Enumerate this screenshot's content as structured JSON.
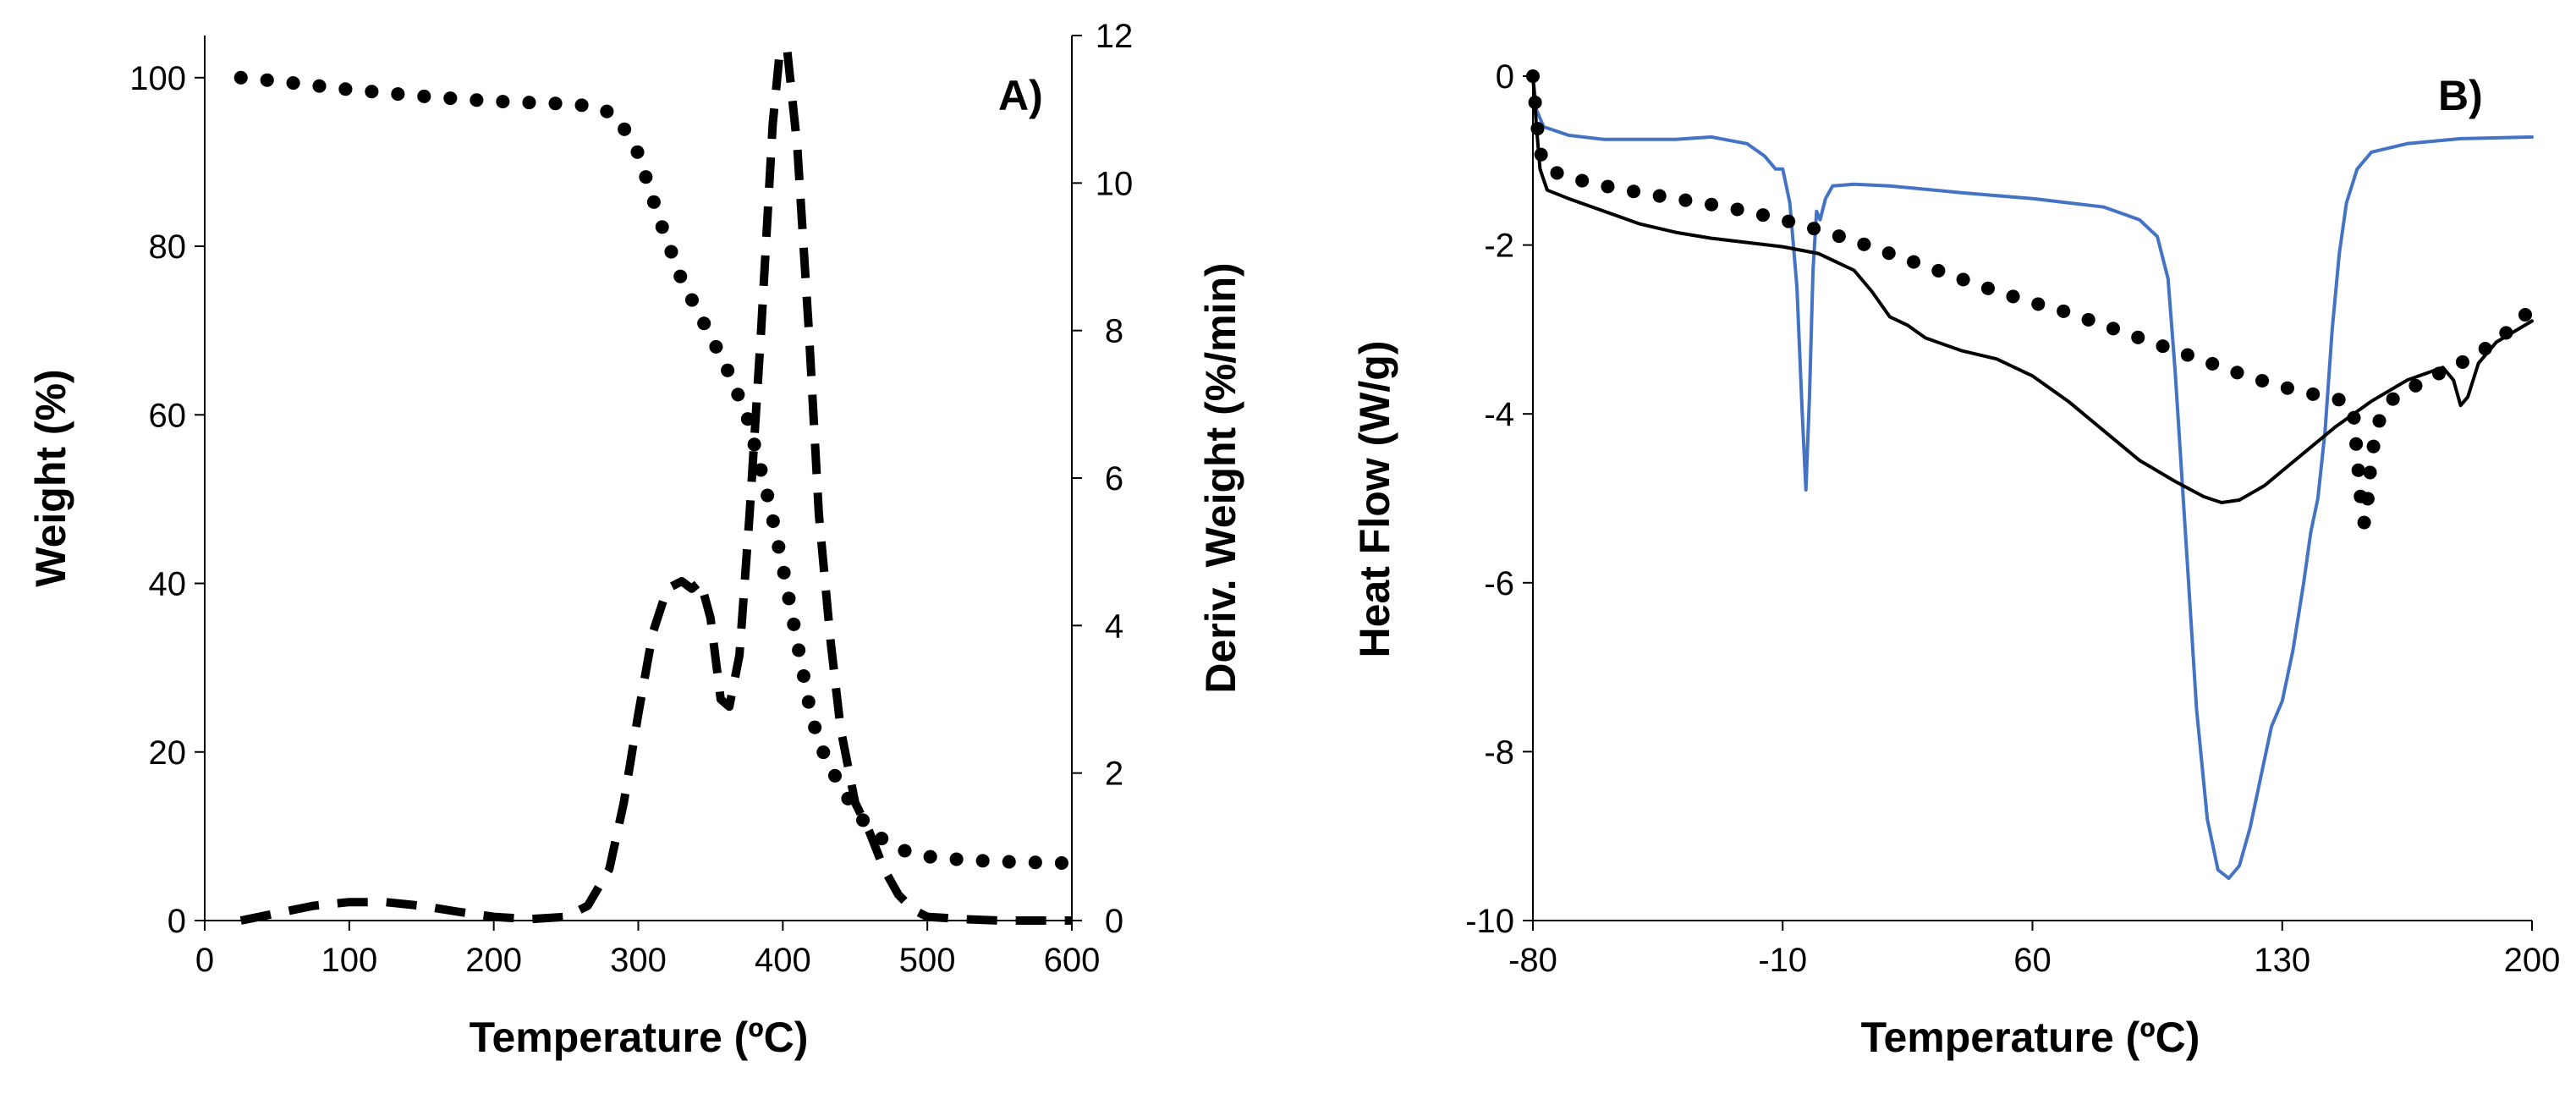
{
  "chart_data": [
    {
      "type": "line",
      "title": "",
      "panel_label": "A)",
      "xlabel": "Temperature (ºC)",
      "ylabel": "Weight (%)",
      "y2label": "Deriv. Weight (%/min)",
      "xlim": [
        0,
        600
      ],
      "ylim": [
        0,
        105
      ],
      "y2lim": [
        0,
        12
      ],
      "x_ticks": [
        "0",
        "100",
        "200",
        "300",
        "400",
        "500",
        "600"
      ],
      "y_ticks": [
        "0",
        "20",
        "40",
        "60",
        "80",
        "100"
      ],
      "y2_ticks": [
        "0",
        "2",
        "4",
        "6",
        "8",
        "10",
        "12"
      ],
      "grid": false,
      "series": [
        {
          "name": "Weight",
          "axis": "left",
          "style": "dotted",
          "color": "#000000",
          "points": [
            [
              25,
              100
            ],
            [
              50,
              99.6
            ],
            [
              100,
              98.6
            ],
            [
              150,
              97.8
            ],
            [
              200,
              97.2
            ],
            [
              250,
              96.9
            ],
            [
              270,
              96.6
            ],
            [
              285,
              95.5
            ],
            [
              300,
              91
            ],
            [
              315,
              83
            ],
            [
              330,
              76
            ],
            [
              345,
              71
            ],
            [
              360,
              66
            ],
            [
              375,
              60
            ],
            [
              390,
              50
            ],
            [
              400,
              42
            ],
            [
              410,
              33
            ],
            [
              420,
              24
            ],
            [
              430,
              19
            ],
            [
              440,
              16
            ],
            [
              450,
              13
            ],
            [
              460,
              11
            ],
            [
              470,
              9.5
            ],
            [
              480,
              8.5
            ],
            [
              490,
              8
            ],
            [
              500,
              7.6
            ],
            [
              525,
              7.2
            ],
            [
              550,
              7
            ],
            [
              600,
              6.8
            ]
          ]
        },
        {
          "name": "Deriv. Weight",
          "axis": "right",
          "style": "dashed",
          "color": "#000000",
          "points": [
            [
              25,
              0
            ],
            [
              50,
              0.1
            ],
            [
              75,
              0.2
            ],
            [
              100,
              0.25
            ],
            [
              125,
              0.25
            ],
            [
              150,
              0.2
            ],
            [
              175,
              0.12
            ],
            [
              200,
              0.05
            ],
            [
              225,
              0.02
            ],
            [
              250,
              0.05
            ],
            [
              265,
              0.2
            ],
            [
              280,
              0.7
            ],
            [
              290,
              1.6
            ],
            [
              300,
              2.8
            ],
            [
              310,
              3.9
            ],
            [
              320,
              4.5
            ],
            [
              330,
              4.6
            ],
            [
              337,
              4.5
            ],
            [
              343,
              4.6
            ],
            [
              350,
              4.1
            ],
            [
              357,
              3.0
            ],
            [
              363,
              2.9
            ],
            [
              370,
              3.6
            ],
            [
              377,
              5.5
            ],
            [
              385,
              8.0
            ],
            [
              393,
              10.8
            ],
            [
              398,
              11.8
            ],
            [
              403,
              11.8
            ],
            [
              410,
              10.5
            ],
            [
              418,
              8.0
            ],
            [
              425,
              5.5
            ],
            [
              433,
              3.8
            ],
            [
              440,
              2.6
            ],
            [
              450,
              1.6
            ],
            [
              460,
              1.2
            ],
            [
              470,
              0.7
            ],
            [
              480,
              0.35
            ],
            [
              490,
              0.15
            ],
            [
              500,
              0.05
            ],
            [
              525,
              0.02
            ],
            [
              550,
              0.0
            ],
            [
              600,
              0.0
            ]
          ]
        }
      ]
    },
    {
      "type": "line",
      "title": "",
      "panel_label": "B)",
      "xlabel": "Temperature (ºC)",
      "ylabel": "Heat Flow (W/g)",
      "xlim": [
        -80,
        200
      ],
      "ylim": [
        -10,
        0
      ],
      "x_ticks": [
        "-80",
        "-10",
        "60",
        "130",
        "200"
      ],
      "y_ticks": [
        "0",
        "-2",
        "-4",
        "-6",
        "-8",
        "-10"
      ],
      "grid": false,
      "series": [
        {
          "name": "blue",
          "style": "solid",
          "color": "#4472C4",
          "points": [
            [
              -80,
              0
            ],
            [
              -79,
              -0.4
            ],
            [
              -77,
              -0.6
            ],
            [
              -70,
              -0.7
            ],
            [
              -60,
              -0.75
            ],
            [
              -50,
              -0.75
            ],
            [
              -40,
              -0.75
            ],
            [
              -30,
              -0.72
            ],
            [
              -20,
              -0.8
            ],
            [
              -15,
              -0.95
            ],
            [
              -12,
              -1.1
            ],
            [
              -10,
              -1.1
            ],
            [
              -8,
              -1.5
            ],
            [
              -6,
              -2.5
            ],
            [
              -4.5,
              -4.0
            ],
            [
              -3.5,
              -4.9
            ],
            [
              -2.5,
              -3.8
            ],
            [
              -1.5,
              -2.3
            ],
            [
              -0.5,
              -1.6
            ],
            [
              0.5,
              -1.7
            ],
            [
              2,
              -1.45
            ],
            [
              4,
              -1.3
            ],
            [
              10,
              -1.28
            ],
            [
              20,
              -1.3
            ],
            [
              40,
              -1.38
            ],
            [
              60,
              -1.45
            ],
            [
              80,
              -1.55
            ],
            [
              90,
              -1.7
            ],
            [
              95,
              -1.9
            ],
            [
              98,
              -2.4
            ],
            [
              100,
              -3.5
            ],
            [
              103,
              -5.5
            ],
            [
              106,
              -7.5
            ],
            [
              109,
              -8.8
            ],
            [
              112,
              -9.4
            ],
            [
              115,
              -9.5
            ],
            [
              118,
              -9.35
            ],
            [
              121,
              -8.9
            ],
            [
              124,
              -8.3
            ],
            [
              127,
              -7.7
            ],
            [
              130,
              -7.4
            ],
            [
              133,
              -6.8
            ],
            [
              136,
              -6.0
            ],
            [
              138,
              -5.4
            ],
            [
              140,
              -5.0
            ],
            [
              142,
              -4.2
            ],
            [
              144,
              -3.0
            ],
            [
              146,
              -2.1
            ],
            [
              148,
              -1.5
            ],
            [
              151,
              -1.1
            ],
            [
              155,
              -0.9
            ],
            [
              165,
              -0.8
            ],
            [
              180,
              -0.74
            ],
            [
              200,
              -0.72
            ]
          ]
        },
        {
          "name": "black",
          "style": "solid",
          "color": "#000000",
          "points": [
            [
              -80,
              0
            ],
            [
              -79,
              -0.6
            ],
            [
              -78,
              -1.1
            ],
            [
              -76,
              -1.35
            ],
            [
              -70,
              -1.45
            ],
            [
              -60,
              -1.6
            ],
            [
              -50,
              -1.75
            ],
            [
              -40,
              -1.85
            ],
            [
              -30,
              -1.92
            ],
            [
              -20,
              -1.97
            ],
            [
              -10,
              -2.02
            ],
            [
              0,
              -2.1
            ],
            [
              5,
              -2.2
            ],
            [
              10,
              -2.3
            ],
            [
              15,
              -2.55
            ],
            [
              20,
              -2.85
            ],
            [
              25,
              -2.95
            ],
            [
              30,
              -3.1
            ],
            [
              40,
              -3.25
            ],
            [
              50,
              -3.35
            ],
            [
              60,
              -3.55
            ],
            [
              70,
              -3.85
            ],
            [
              80,
              -4.2
            ],
            [
              90,
              -4.55
            ],
            [
              100,
              -4.8
            ],
            [
              108,
              -4.98
            ],
            [
              113,
              -5.05
            ],
            [
              118,
              -5.02
            ],
            [
              125,
              -4.85
            ],
            [
              135,
              -4.5
            ],
            [
              145,
              -4.15
            ],
            [
              155,
              -3.85
            ],
            [
              165,
              -3.6
            ],
            [
              175,
              -3.45
            ],
            [
              178,
              -3.6
            ],
            [
              180,
              -3.9
            ],
            [
              182,
              -3.8
            ],
            [
              185,
              -3.4
            ],
            [
              190,
              -3.15
            ],
            [
              200,
              -2.9
            ]
          ]
        },
        {
          "name": "dotted",
          "style": "dotted",
          "color": "#000000",
          "points": [
            [
              -80,
              0
            ],
            [
              -79,
              -0.5
            ],
            [
              -78,
              -0.9
            ],
            [
              -76,
              -1.1
            ],
            [
              -70,
              -1.2
            ],
            [
              -60,
              -1.3
            ],
            [
              -50,
              -1.38
            ],
            [
              -40,
              -1.45
            ],
            [
              -30,
              -1.52
            ],
            [
              -20,
              -1.6
            ],
            [
              -10,
              -1.7
            ],
            [
              0,
              -1.82
            ],
            [
              10,
              -1.95
            ],
            [
              20,
              -2.1
            ],
            [
              30,
              -2.25
            ],
            [
              40,
              -2.4
            ],
            [
              50,
              -2.55
            ],
            [
              60,
              -2.68
            ],
            [
              70,
              -2.8
            ],
            [
              80,
              -2.95
            ],
            [
              90,
              -3.1
            ],
            [
              100,
              -3.25
            ],
            [
              110,
              -3.4
            ],
            [
              120,
              -3.55
            ],
            [
              130,
              -3.68
            ],
            [
              140,
              -3.78
            ],
            [
              148,
              -3.85
            ],
            [
              150,
              -4.0
            ],
            [
              151,
              -4.5
            ],
            [
              152,
              -5.0
            ],
            [
              153,
              -5.3
            ],
            [
              154,
              -5.0
            ],
            [
              155,
              -4.5
            ],
            [
              157,
              -4.1
            ],
            [
              160,
              -3.85
            ],
            [
              170,
              -3.6
            ],
            [
              180,
              -3.4
            ],
            [
              190,
              -3.15
            ],
            [
              200,
              -2.75
            ]
          ]
        }
      ]
    }
  ]
}
